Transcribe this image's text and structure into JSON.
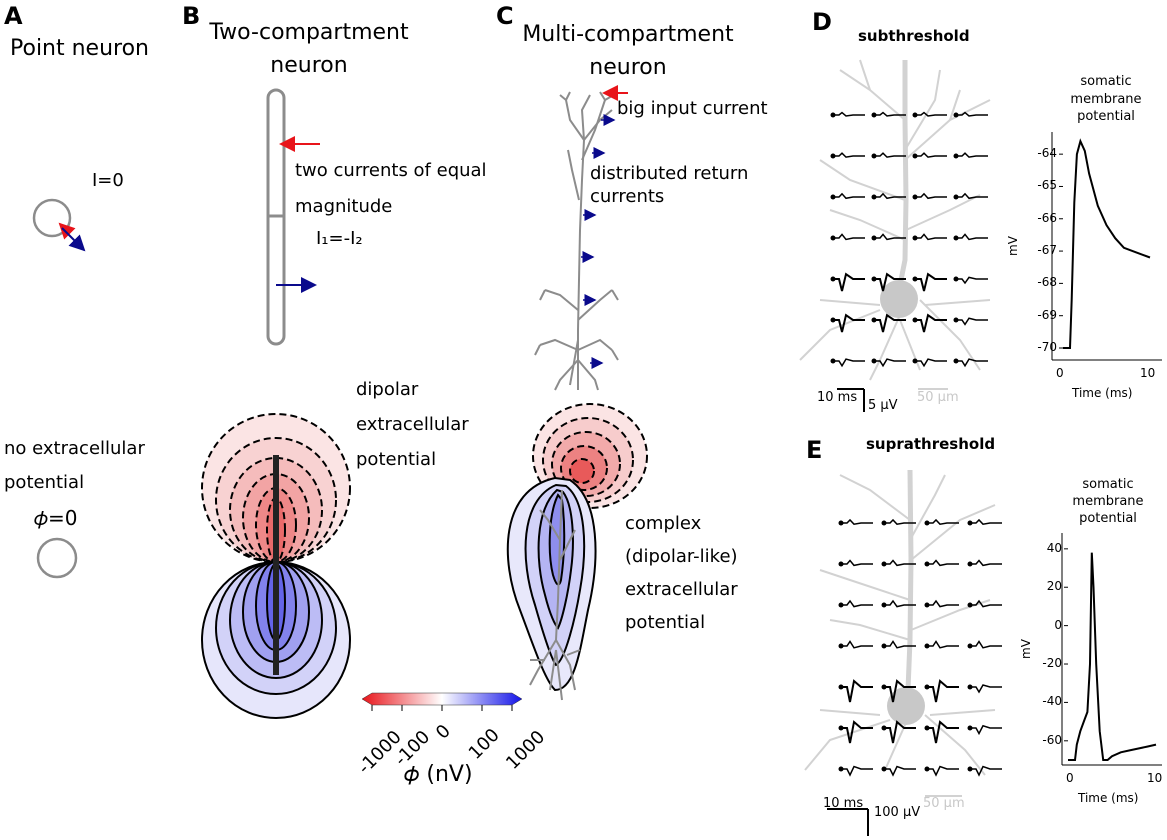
{
  "panels": {
    "a": {
      "label": "A",
      "title": "Point neuron",
      "current": "I=0",
      "no_potential": [
        "no extracellular",
        "potential"
      ],
      "phi_zero": "𝜙=0"
    },
    "b": {
      "label": "B",
      "title": [
        "Two-compartment",
        "neuron"
      ],
      "currents_note": [
        "two currents of equal",
        "magnitude"
      ],
      "equation": "I₁=-I₂",
      "potential_note": [
        "dipolar",
        "extracellular",
        "potential"
      ]
    },
    "c": {
      "label": "C",
      "title": [
        "Multi-compartment",
        "neuron"
      ],
      "input_note": "big input current",
      "return_note": [
        "distributed return",
        "currents"
      ],
      "potential_note": [
        "complex",
        "(dipolar-like)",
        "extracellular",
        "potential"
      ]
    },
    "d": {
      "label": "D",
      "title": "subthreshold",
      "scale_time": "10 ms",
      "scale_volt": "5 μV",
      "scale_len": "50 μm",
      "trace_title": [
        "somatic",
        "membrane",
        "potential"
      ],
      "ylabel": "mV",
      "xlabel": "Time (ms)"
    },
    "e": {
      "label": "E",
      "title": "suprathreshold",
      "scale_time": "10 ms",
      "scale_volt": "100 μV",
      "scale_len": "50 μm",
      "trace_title": [
        "somatic",
        "membrane",
        "potential"
      ],
      "ylabel": "mV",
      "xlabel": "Time (ms)"
    }
  },
  "colorbar": {
    "ticks": [
      "-1000",
      "-100",
      "0",
      "100",
      "1000"
    ],
    "label": "𝜙 (nV)",
    "colors": {
      "negative": "#e8141a",
      "zero": "#ffffff",
      "positive": "#1414e8"
    }
  },
  "colors": {
    "input_arrow": "#e8141a",
    "return_arrow": "#0a0a8c",
    "neuron": "#8c8c8c",
    "morphology": "#d2d2d2"
  },
  "chart_data": [
    {
      "type": "line",
      "title": "somatic membrane potential (subthreshold)",
      "xlabel": "Time (ms)",
      "ylabel": "mV",
      "xlim": [
        0,
        10
      ],
      "ylim": [
        -70,
        -63.5
      ],
      "xticks": [
        0,
        10
      ],
      "yticks": [
        -64,
        -65,
        -66,
        -67,
        -68,
        -69,
        -70
      ],
      "x": [
        0,
        0.8,
        1.0,
        1.3,
        1.6,
        2.0,
        2.5,
        3,
        4,
        5,
        6,
        7,
        8,
        9,
        10
      ],
      "y": [
        -70,
        -70,
        -68.5,
        -65.5,
        -64.0,
        -63.6,
        -63.9,
        -64.6,
        -65.6,
        -66.2,
        -66.6,
        -66.9,
        -67.0,
        -67.1,
        -67.2
      ]
    },
    {
      "type": "line",
      "title": "somatic membrane potential (suprathreshold)",
      "xlabel": "Time (ms)",
      "ylabel": "mV",
      "xlim": [
        0,
        10
      ],
      "ylim": [
        -70,
        42
      ],
      "xticks": [
        0,
        10
      ],
      "yticks": [
        40,
        20,
        0,
        -20,
        -40,
        -60
      ],
      "x": [
        0,
        0.8,
        1.0,
        1.4,
        1.8,
        2.2,
        2.5,
        2.7,
        2.9,
        3.2,
        3.6,
        4.0,
        4.5,
        5.0,
        6,
        7,
        8,
        9,
        10
      ],
      "y": [
        -70,
        -70,
        -62,
        -55,
        -50,
        -45,
        -20,
        38,
        20,
        -20,
        -55,
        -70,
        -70,
        -68,
        -66,
        -65,
        -64,
        -63,
        -62
      ]
    }
  ]
}
